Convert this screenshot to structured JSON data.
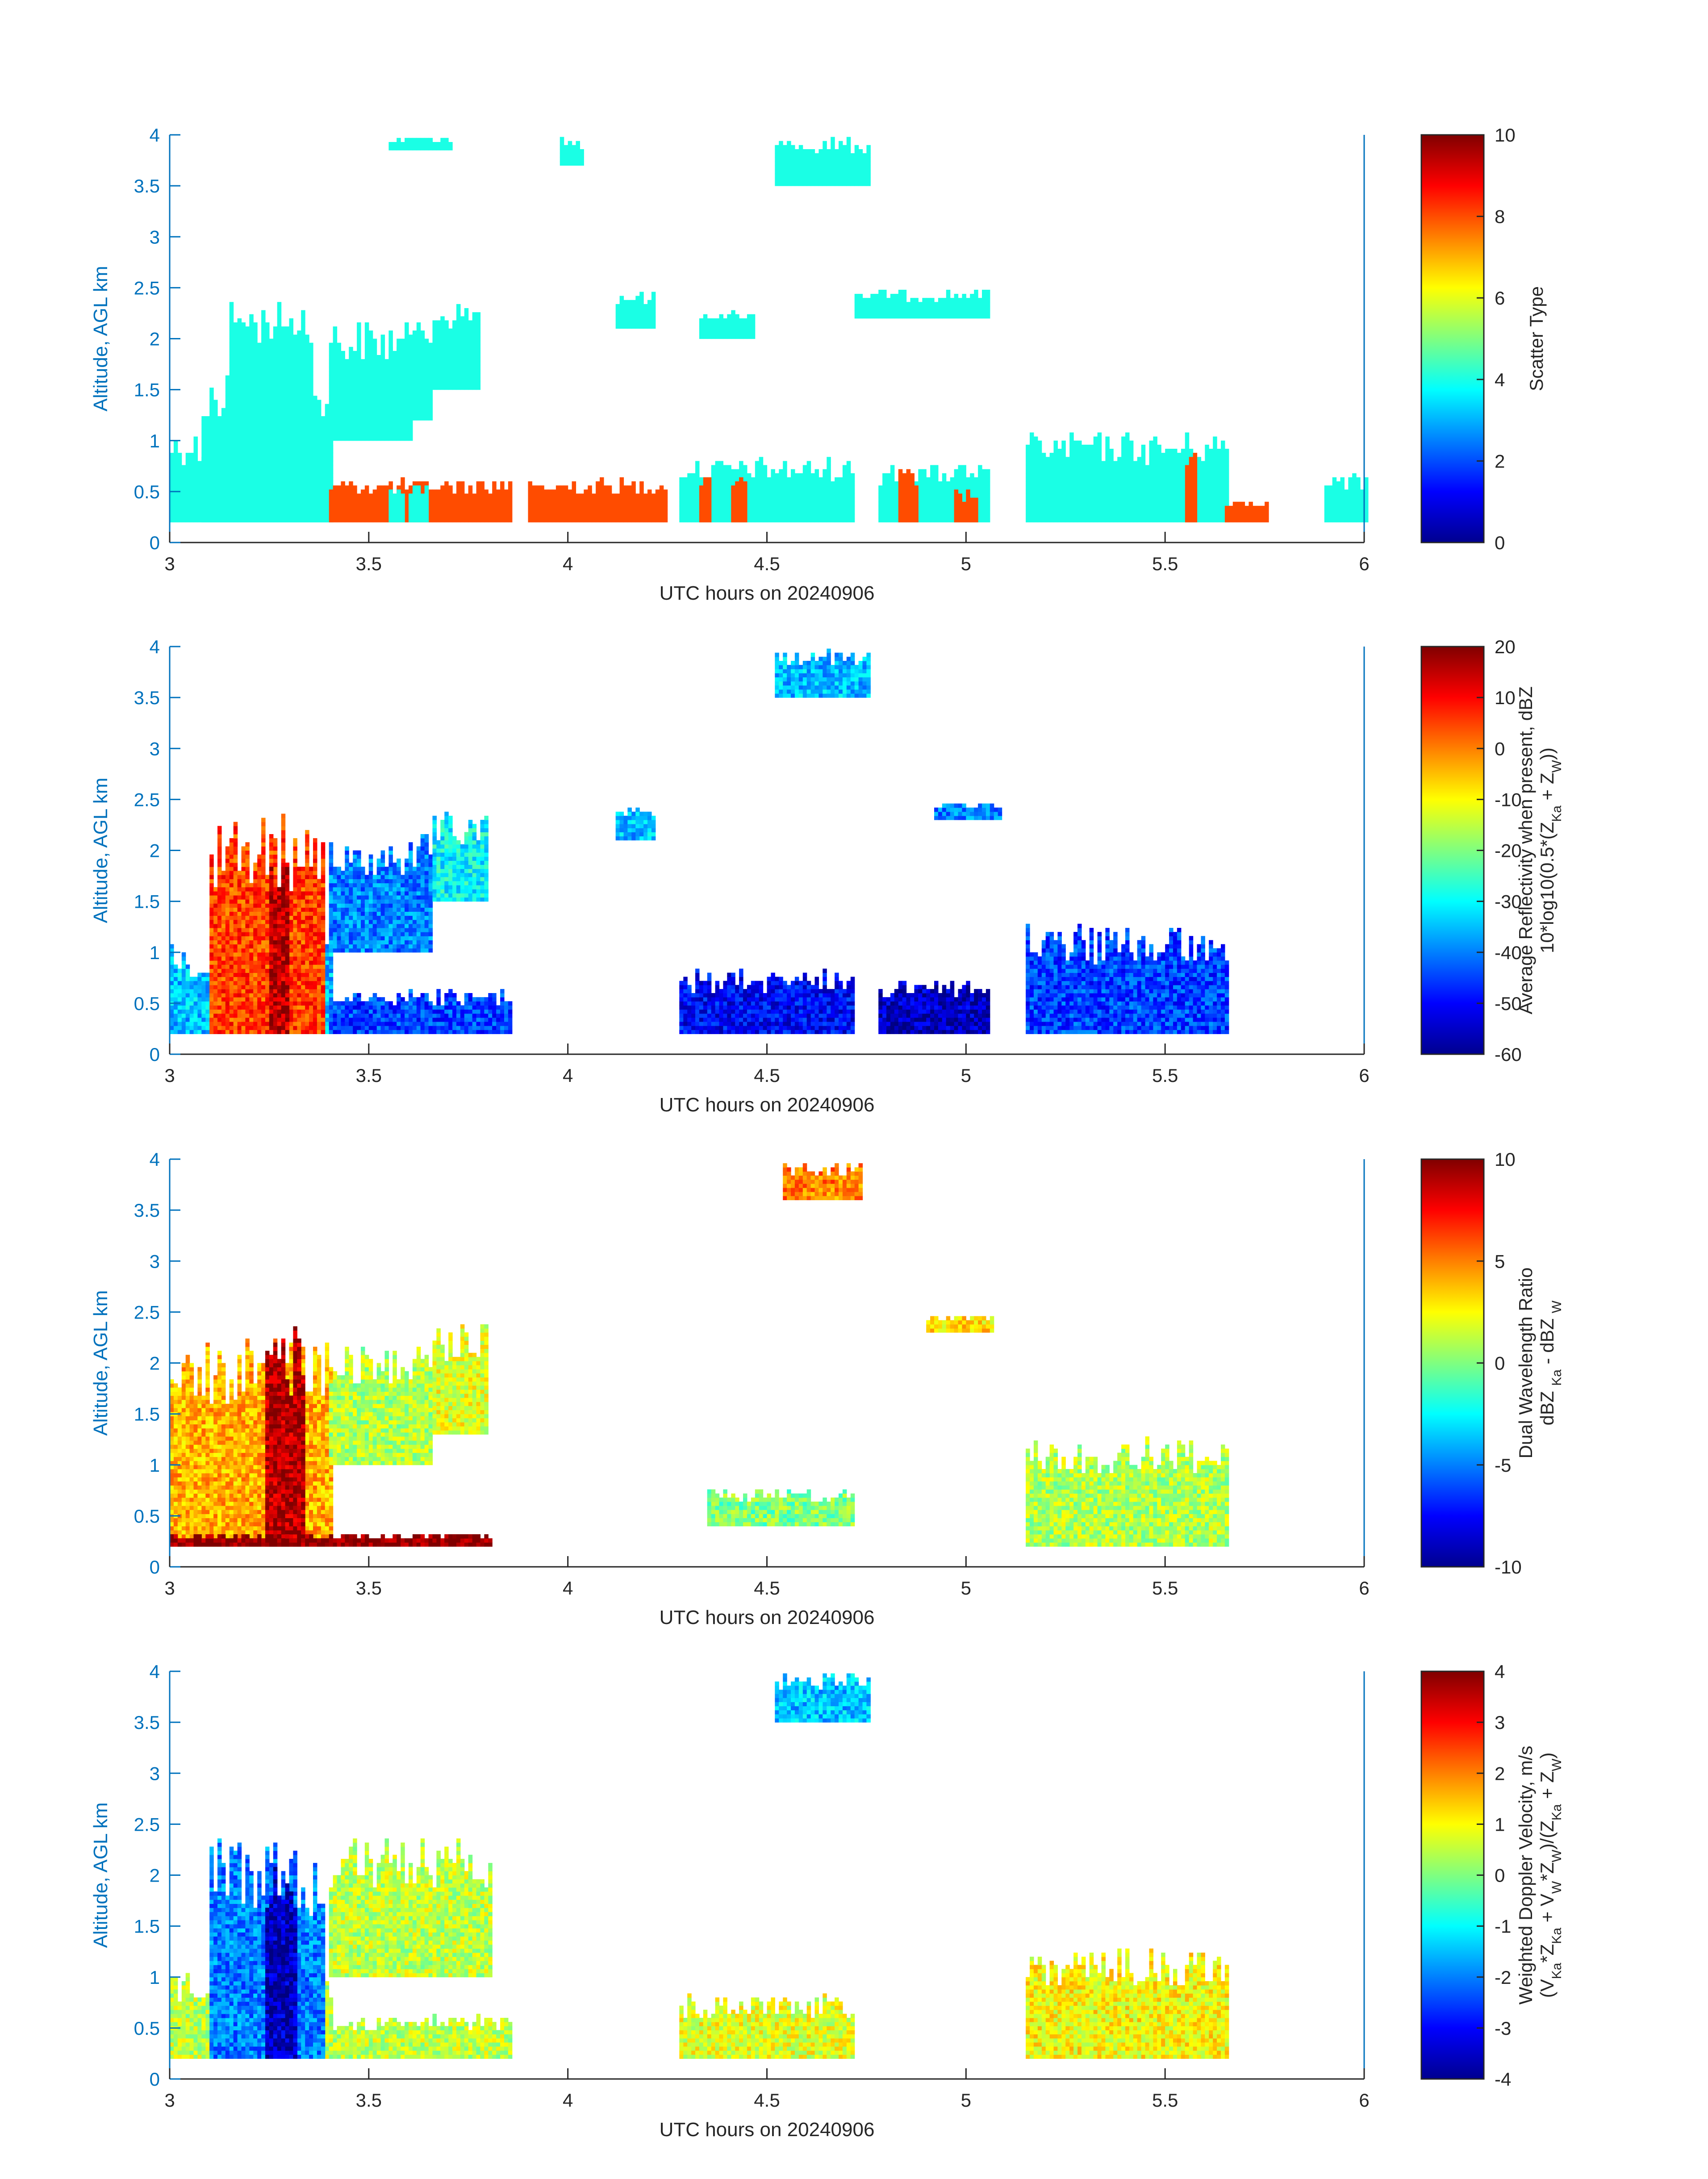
{
  "x_axis": {
    "label": "UTC hours on 20240906",
    "min": 3,
    "max": 6,
    "ticks": [
      3,
      3.5,
      4,
      4.5,
      5,
      5.5,
      6
    ],
    "tick_labels": [
      "3",
      "3.5",
      "4",
      "4.5",
      "5",
      "5.5",
      "6"
    ]
  },
  "y_axis": {
    "label": "Altitude, AGL km",
    "min": 0,
    "max": 4,
    "ticks": [
      0,
      0.5,
      1,
      1.5,
      2,
      2.5,
      3,
      3.5,
      4
    ],
    "tick_labels": [
      "0",
      "0.5",
      "1",
      "1.5",
      "2",
      "2.5",
      "3",
      "3.5",
      "4"
    ]
  },
  "colors": {
    "axis": "#0072BD",
    "text": "#262626",
    "colorbar_frame": "#262626"
  },
  "colormap": "jet",
  "chart_data": [
    {
      "type": "heatmap",
      "name": "scatter_type",
      "colorbar": {
        "min": 0,
        "max": 10,
        "ticks": [
          0,
          2,
          4,
          6,
          8,
          10
        ],
        "tick_labels": [
          "0",
          "2",
          "4",
          "6",
          "8",
          "10"
        ],
        "label_lines": [
          "Scatter Type"
        ]
      },
      "dominant_values": [
        4,
        8
      ],
      "data_regions": [
        {
          "x0": 3.0,
          "x1": 3.4,
          "y0": 0.2,
          "y1": 1.1,
          "value": 4
        },
        {
          "x0": 3.08,
          "x1": 3.4,
          "y0": 0.2,
          "y1": 1.7,
          "value": 4
        },
        {
          "x0": 3.15,
          "x1": 3.35,
          "y0": 1.2,
          "y1": 2.4,
          "value": 4
        },
        {
          "x0": 3.4,
          "x1": 3.6,
          "y0": 1.0,
          "y1": 2.2,
          "value": 4
        },
        {
          "x0": 3.55,
          "x1": 3.65,
          "y0": 1.2,
          "y1": 2.2,
          "value": 4
        },
        {
          "x0": 3.66,
          "x1": 3.78,
          "y0": 1.5,
          "y1": 2.4,
          "value": 4
        },
        {
          "x0": 3.4,
          "x1": 3.85,
          "y0": 0.2,
          "y1": 0.65,
          "value": 8
        },
        {
          "x0": 3.55,
          "x1": 3.58,
          "y0": 0.2,
          "y1": 0.6,
          "value": 4
        },
        {
          "x0": 3.6,
          "x1": 3.65,
          "y0": 0.2,
          "y1": 0.6,
          "value": 4
        },
        {
          "x0": 3.9,
          "x1": 4.25,
          "y0": 0.2,
          "y1": 0.65,
          "value": 8
        },
        {
          "x0": 4.12,
          "x1": 4.22,
          "y0": 2.1,
          "y1": 2.5,
          "value": 4
        },
        {
          "x0": 4.33,
          "x1": 4.47,
          "y0": 2.0,
          "y1": 2.3,
          "value": 4
        },
        {
          "x0": 4.28,
          "x1": 4.72,
          "y0": 0.2,
          "y1": 0.85,
          "value": 4
        },
        {
          "x0": 4.33,
          "x1": 4.36,
          "y0": 0.2,
          "y1": 0.75,
          "value": 8
        },
        {
          "x0": 4.41,
          "x1": 4.44,
          "y0": 0.2,
          "y1": 0.75,
          "value": 8
        },
        {
          "x0": 4.72,
          "x1": 5.05,
          "y0": 2.2,
          "y1": 2.5,
          "value": 4
        },
        {
          "x0": 4.78,
          "x1": 5.05,
          "y0": 0.2,
          "y1": 0.8,
          "value": 4
        },
        {
          "x0": 4.83,
          "x1": 4.88,
          "y0": 0.2,
          "y1": 0.75,
          "value": 8
        },
        {
          "x0": 4.97,
          "x1": 5.02,
          "y0": 0.2,
          "y1": 0.55,
          "value": 8
        },
        {
          "x0": 5.15,
          "x1": 5.65,
          "y0": 0.2,
          "y1": 1.1,
          "value": 4
        },
        {
          "x0": 5.55,
          "x1": 5.57,
          "y0": 0.2,
          "y1": 1.0,
          "value": 8
        },
        {
          "x0": 5.65,
          "x1": 5.75,
          "y0": 0.2,
          "y1": 0.45,
          "value": 8
        },
        {
          "x0": 5.9,
          "x1": 6.0,
          "y0": 0.2,
          "y1": 0.7,
          "value": 4
        },
        {
          "x0": 3.98,
          "x1": 4.04,
          "y0": 3.7,
          "y1": 4.0,
          "value": 4
        },
        {
          "x0": 4.52,
          "x1": 4.76,
          "y0": 3.5,
          "y1": 4.0,
          "value": 4
        },
        {
          "x0": 3.55,
          "x1": 3.7,
          "y0": 3.85,
          "y1": 4.0,
          "value": 4
        }
      ]
    },
    {
      "type": "heatmap",
      "name": "average_reflectivity",
      "colorbar": {
        "min": -60,
        "max": 20,
        "ticks": [
          -60,
          -50,
          -40,
          -30,
          -20,
          -10,
          0,
          10,
          20
        ],
        "tick_labels": [
          "-60",
          "-50",
          "-40",
          "-30",
          "-20",
          "-10",
          "0",
          "10",
          "20"
        ],
        "label_lines": [
          "Average Reflectivity when present, dBZ",
          "10*log10(0.5*(Z<sub>Ka</sub> + Z<sub>W</sub>))"
        ]
      },
      "data_regions": [
        {
          "x0": 3.0,
          "x1": 3.4,
          "y0": 0.2,
          "y1": 1.1,
          "value": -35
        },
        {
          "x0": 3.1,
          "x1": 3.38,
          "y0": 0.2,
          "y1": 2.4,
          "value": 5
        },
        {
          "x0": 3.25,
          "x1": 3.3,
          "y0": 0.2,
          "y1": 2.2,
          "value": 15
        },
        {
          "x0": 3.4,
          "x1": 3.85,
          "y0": 0.2,
          "y1": 0.65,
          "value": -45
        },
        {
          "x0": 3.4,
          "x1": 3.65,
          "y0": 1.0,
          "y1": 2.2,
          "value": -40
        },
        {
          "x0": 3.66,
          "x1": 3.8,
          "y0": 1.5,
          "y1": 2.4,
          "value": -30
        },
        {
          "x0": 4.28,
          "x1": 4.72,
          "y0": 0.2,
          "y1": 0.85,
          "value": -50
        },
        {
          "x0": 4.78,
          "x1": 5.05,
          "y0": 0.2,
          "y1": 0.8,
          "value": -55
        },
        {
          "x0": 5.15,
          "x1": 5.65,
          "y0": 0.2,
          "y1": 1.3,
          "value": -45
        },
        {
          "x0": 4.12,
          "x1": 4.22,
          "y0": 2.1,
          "y1": 2.5,
          "value": -35
        },
        {
          "x0": 4.92,
          "x1": 5.08,
          "y0": 2.3,
          "y1": 2.5,
          "value": -40
        },
        {
          "x0": 4.52,
          "x1": 4.76,
          "y0": 3.5,
          "y1": 4.0,
          "value": -35
        }
      ]
    },
    {
      "type": "heatmap",
      "name": "dual_wavelength_ratio",
      "colorbar": {
        "min": -10,
        "max": 10,
        "ticks": [
          -10,
          -5,
          0,
          5,
          10
        ],
        "tick_labels": [
          "-10",
          "-5",
          "0",
          "5",
          "10"
        ],
        "label_lines": [
          "Dual Wavelength Ratio",
          "dBZ <sub>Ka</sub> - dBZ <sub>W</sub>"
        ]
      },
      "data_regions": [
        {
          "x0": 3.0,
          "x1": 3.4,
          "y0": 0.2,
          "y1": 2.3,
          "value": 4
        },
        {
          "x0": 3.24,
          "x1": 3.33,
          "y0": 0.2,
          "y1": 2.4,
          "value": 9
        },
        {
          "x0": 3.0,
          "x1": 3.8,
          "y0": 0.2,
          "y1": 0.35,
          "value": 10
        },
        {
          "x0": 3.4,
          "x1": 3.65,
          "y0": 1.0,
          "y1": 2.2,
          "value": 1
        },
        {
          "x0": 3.66,
          "x1": 3.8,
          "y0": 1.3,
          "y1": 2.4,
          "value": 2
        },
        {
          "x0": 4.35,
          "x1": 4.72,
          "y0": 0.4,
          "y1": 0.8,
          "value": 0
        },
        {
          "x0": 5.15,
          "x1": 5.65,
          "y0": 0.2,
          "y1": 1.3,
          "value": 1
        },
        {
          "x0": 4.9,
          "x1": 5.06,
          "y0": 2.3,
          "y1": 2.5,
          "value": 3
        },
        {
          "x0": 4.54,
          "x1": 4.74,
          "y0": 3.6,
          "y1": 4.0,
          "value": 5
        }
      ]
    },
    {
      "type": "heatmap",
      "name": "weighted_doppler_velocity",
      "colorbar": {
        "min": -4,
        "max": 4,
        "ticks": [
          -4,
          -3,
          -2,
          -1,
          0,
          1,
          2,
          3,
          4
        ],
        "tick_labels": [
          "-4",
          "-3",
          "-2",
          "-1",
          "0",
          "1",
          "2",
          "3",
          "4"
        ],
        "label_lines": [
          "Weighted Doppler Velocity, m/s",
          "(V<sub>Ka</sub>*Z<sub>Ka</sub> + V<sub>W</sub>*Z<sub>W</sub>)/(Z<sub>Ka</sub> + Z<sub>W</sub>)"
        ]
      },
      "data_regions": [
        {
          "x0": 3.0,
          "x1": 3.4,
          "y0": 0.2,
          "y1": 1.1,
          "value": 0.5
        },
        {
          "x0": 3.1,
          "x1": 3.38,
          "y0": 0.2,
          "y1": 2.4,
          "value": -2
        },
        {
          "x0": 3.24,
          "x1": 3.32,
          "y0": 0.2,
          "y1": 2.2,
          "value": -3.5
        },
        {
          "x0": 3.4,
          "x1": 3.85,
          "y0": 0.2,
          "y1": 0.65,
          "value": 0.5
        },
        {
          "x0": 3.4,
          "x1": 3.8,
          "y0": 1.0,
          "y1": 2.4,
          "value": 0.5
        },
        {
          "x0": 4.28,
          "x1": 4.72,
          "y0": 0.2,
          "y1": 0.85,
          "value": 0.8
        },
        {
          "x0": 5.15,
          "x1": 5.65,
          "y0": 0.2,
          "y1": 1.3,
          "value": 1
        },
        {
          "x0": 4.52,
          "x1": 4.76,
          "y0": 3.5,
          "y1": 4.0,
          "value": -1.5
        }
      ]
    }
  ]
}
